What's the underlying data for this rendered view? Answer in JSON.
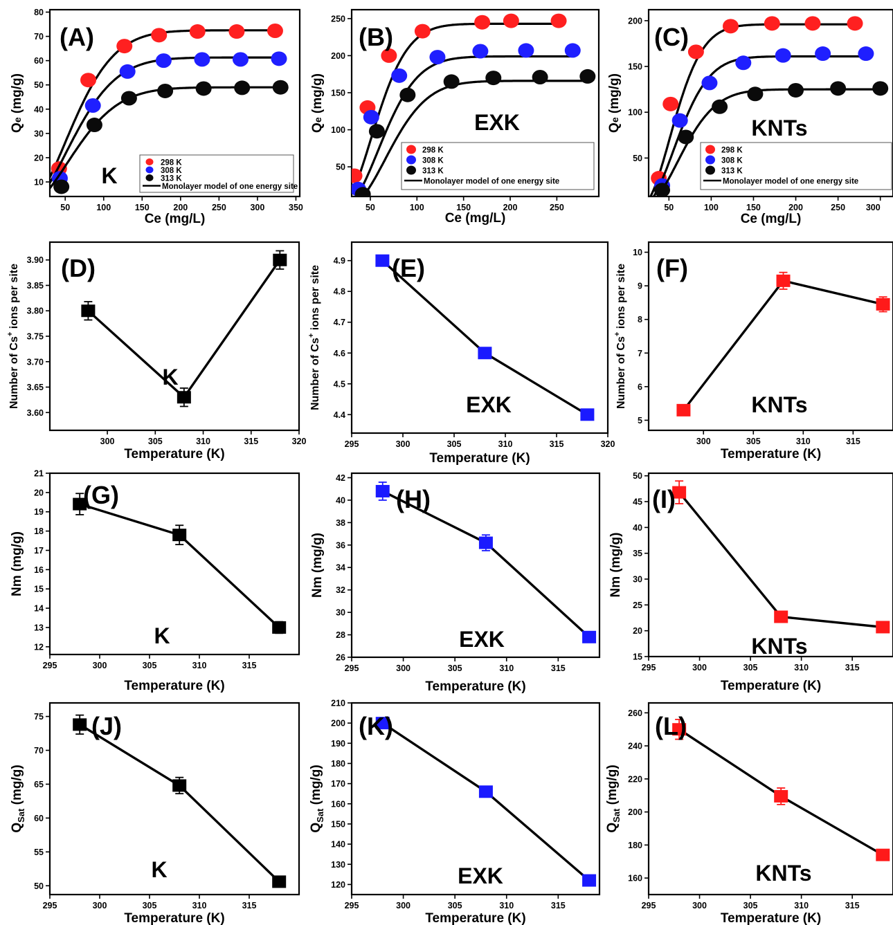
{
  "colors": {
    "298 K": "#ff2020",
    "308 K": "#1f1fff",
    "313 K": "#0a0a0a",
    "K": "#000000",
    "EXK": "#1a1aff",
    "KNTs": "#ff1a1a"
  },
  "chart_data": [
    {
      "id": "A",
      "type": "scatter",
      "panel_label": "(A)",
      "sample_label": "K",
      "xlabel": "Ce (mg/L)",
      "ylabel": "Qe (mg/g)",
      "xlim": [
        30,
        355
      ],
      "ylim": [
        4,
        81
      ],
      "xticks": [
        50,
        100,
        150,
        200,
        250,
        300,
        350
      ],
      "yticks": [
        10,
        20,
        30,
        40,
        50,
        60,
        70,
        80
      ],
      "legend": {
        "position": "bottom-right",
        "entries": [
          "298 K",
          "308 K",
          "313 K",
          "Monolayer  model of one energy site"
        ]
      },
      "series": [
        {
          "name": "298 K",
          "color_key": "298 K",
          "x": [
            42,
            80,
            127,
            172,
            222,
            273,
            323
          ],
          "y": [
            15.5,
            52,
            66,
            70.5,
            72,
            72,
            72.3
          ],
          "fit": [
            0,
            72.5,
            78
          ]
        },
        {
          "name": "308 K",
          "color_key": "308 K",
          "x": [
            43,
            86,
            131,
            178,
            228,
            278,
            328
          ],
          "y": [
            11.5,
            41.5,
            55.5,
            60,
            60.5,
            60.5,
            60.8
          ],
          "fit": [
            0,
            61.3,
            80
          ]
        },
        {
          "name": "313 K",
          "color_key": "313 K",
          "x": [
            45,
            88,
            133,
            180,
            230,
            280,
            330
          ],
          "y": [
            8,
            33.5,
            44.5,
            47.5,
            48.5,
            48.8,
            49
          ],
          "fit": [
            0,
            49,
            82
          ]
        }
      ]
    },
    {
      "id": "B",
      "type": "scatter",
      "panel_label": "(B)",
      "sample_label": "EXK",
      "xlabel": "Ce (mg/L)",
      "ylabel": "Qe (mg/g)",
      "xlim": [
        30,
        295
      ],
      "ylim": [
        10,
        262
      ],
      "xticks": [
        50,
        100,
        150,
        200,
        250
      ],
      "yticks": [
        50,
        100,
        150,
        200,
        250
      ],
      "legend": {
        "position": "bottom-right",
        "entries": [
          "298 K",
          "308 K",
          "313 K",
          "Monolayer model of one energy site"
        ]
      },
      "series": [
        {
          "name": "298 K",
          "color_key": "298 K",
          "x": [
            33,
            47,
            70,
            106,
            170,
            201,
            252
          ],
          "y": [
            38,
            130,
            200,
            233,
            245,
            247,
            247
          ],
          "fit": [
            20,
            243,
            48
          ]
        },
        {
          "name": "308 K",
          "color_key": "308 K",
          "x": [
            37,
            51,
            81,
            122,
            168,
            217,
            267
          ],
          "y": [
            20,
            117,
            173,
            198,
            206,
            207,
            207
          ],
          "fit": [
            25,
            199,
            52
          ]
        },
        {
          "name": "313 K",
          "color_key": "313 K",
          "x": [
            42,
            57,
            90,
            137,
            182,
            232,
            283
          ],
          "y": [
            13,
            98,
            147,
            165,
            170,
            171,
            172
          ],
          "fit": [
            30,
            166,
            56
          ]
        }
      ]
    },
    {
      "id": "C",
      "type": "scatter",
      "panel_label": "(C)",
      "sample_label": "KNTs",
      "xlabel": "Ce (mg/L)",
      "ylabel": "Qe (mg/g)",
      "xlim": [
        26,
        315
      ],
      "ylim": [
        8,
        212
      ],
      "xticks": [
        50,
        100,
        150,
        200,
        250,
        300
      ],
      "yticks": [
        50,
        100,
        150,
        200
      ],
      "legend": {
        "position": "bottom-right",
        "entries": [
          "298 K",
          "308 K",
          "313 K",
          "Monolayer model of one energy site"
        ]
      },
      "series": [
        {
          "name": "298 K",
          "color_key": "298 K",
          "x": [
            38,
            52,
            82,
            123,
            172,
            220,
            270
          ],
          "y": [
            28,
            109,
            166,
            194,
            197,
            197,
            197
          ],
          "fit": [
            20,
            196,
            48
          ]
        },
        {
          "name": "308 K",
          "color_key": "308 K",
          "x": [
            42,
            63,
            98,
            138,
            185,
            232,
            283
          ],
          "y": [
            20,
            91,
            132,
            154,
            162,
            164,
            164
          ],
          "fit": [
            22,
            161,
            52
          ]
        },
        {
          "name": "313 K",
          "color_key": "313 K",
          "x": [
            42,
            70,
            110,
            152,
            200,
            250,
            300
          ],
          "y": [
            15,
            73,
            106,
            120,
            124,
            126,
            126
          ],
          "fit": [
            24,
            125,
            56
          ]
        }
      ]
    },
    {
      "id": "D",
      "type": "line",
      "panel_label": "(D)",
      "sample_label": "K",
      "xlabel": "Temperature (K)",
      "ylabel": "Number of Cs+ ions per site",
      "xlim": [
        294,
        320
      ],
      "ylim": [
        3.565,
        3.935
      ],
      "xticks": [
        300,
        305,
        310,
        315,
        320
      ],
      "yticks": [
        3.6,
        3.65,
        3.7,
        3.75,
        3.8,
        3.85,
        3.9
      ],
      "series": [
        {
          "name": "",
          "color_key": "K",
          "x": [
            298,
            308,
            318
          ],
          "y": [
            3.8,
            3.63,
            3.9
          ],
          "err": [
            0.018,
            0.018,
            0.018
          ]
        }
      ]
    },
    {
      "id": "E",
      "type": "line",
      "panel_label": "(E)",
      "sample_label": "EXK",
      "xlabel": "Temperature (K)",
      "ylabel": "Number of Cs+ ions per site",
      "xlim": [
        295,
        320
      ],
      "ylim": [
        4.34,
        4.96
      ],
      "xticks": [
        295,
        300,
        305,
        310,
        315,
        320
      ],
      "yticks": [
        4.4,
        4.5,
        4.6,
        4.7,
        4.8,
        4.9
      ],
      "series": [
        {
          "name": "",
          "color_key": "EXK",
          "x": [
            298,
            308,
            318
          ],
          "y": [
            4.9,
            4.6,
            4.4
          ],
          "err": [
            0.015,
            0.015,
            0.015
          ]
        }
      ]
    },
    {
      "id": "F",
      "type": "line",
      "panel_label": "(F)",
      "sample_label": "KNTs",
      "xlabel": "Temperature (K)",
      "ylabel": "Number of Cs+ ions per site",
      "xlim": [
        294.5,
        319
      ],
      "ylim": [
        4.7,
        10.3
      ],
      "xticks": [
        300,
        305,
        310,
        315
      ],
      "yticks": [
        5,
        6,
        7,
        8,
        9,
        10
      ],
      "series": [
        {
          "name": "",
          "color_key": "KNTs",
          "x": [
            298,
            308,
            318
          ],
          "y": [
            5.3,
            9.15,
            8.45
          ],
          "err": [
            0.1,
            0.25,
            0.22
          ]
        }
      ]
    },
    {
      "id": "G",
      "type": "line",
      "panel_label": "(G)",
      "sample_label": "K",
      "xlabel": "Temperature (K)",
      "ylabel": "Nm (mg/g)",
      "xlim": [
        295,
        320
      ],
      "ylim": [
        11.6,
        21
      ],
      "xticks": [
        295,
        300,
        305,
        310,
        315
      ],
      "yticks": [
        12,
        13,
        14,
        15,
        16,
        17,
        18,
        19,
        20,
        21
      ],
      "series": [
        {
          "name": "",
          "color_key": "K",
          "x": [
            298,
            308,
            318
          ],
          "y": [
            19.4,
            17.8,
            13.0
          ],
          "err": [
            0.55,
            0.5,
            0.3
          ]
        }
      ]
    },
    {
      "id": "H",
      "type": "line",
      "panel_label": "(H)",
      "sample_label": "EXK",
      "xlabel": "Temperature (K)",
      "ylabel": "Nm (mg/g)",
      "xlim": [
        295,
        319
      ],
      "ylim": [
        26,
        42.4
      ],
      "xticks": [
        295,
        300,
        305,
        310,
        315
      ],
      "yticks": [
        26,
        28,
        30,
        32,
        34,
        36,
        38,
        40,
        42
      ],
      "series": [
        {
          "name": "",
          "color_key": "EXK",
          "x": [
            298,
            308,
            318
          ],
          "y": [
            40.8,
            36.2,
            27.8
          ],
          "err": [
            0.8,
            0.7,
            0.25
          ]
        }
      ]
    },
    {
      "id": "I",
      "type": "line",
      "panel_label": "(I)",
      "sample_label": "KNTs",
      "xlabel": "Temperature (K)",
      "ylabel": "Nm (mg/g)",
      "xlim": [
        295,
        319
      ],
      "ylim": [
        15,
        50.5
      ],
      "xticks": [
        295,
        300,
        305,
        310,
        315
      ],
      "yticks": [
        15,
        20,
        25,
        30,
        35,
        40,
        45,
        50
      ],
      "series": [
        {
          "name": "",
          "color_key": "KNTs",
          "x": [
            298,
            308,
            318
          ],
          "y": [
            46.8,
            22.7,
            20.7
          ],
          "err": [
            2.2,
            0.5,
            0.5
          ]
        }
      ]
    },
    {
      "id": "J",
      "type": "line",
      "panel_label": "(J)",
      "sample_label": "K",
      "xlabel": "Temperature (K)",
      "ylabel": "QSat (mg/g)",
      "xlim": [
        295,
        320
      ],
      "ylim": [
        48.7,
        77
      ],
      "xticks": [
        295,
        300,
        305,
        310,
        315
      ],
      "yticks": [
        50,
        55,
        60,
        65,
        70,
        75
      ],
      "series": [
        {
          "name": "",
          "color_key": "K",
          "x": [
            298,
            308,
            318
          ],
          "y": [
            73.8,
            64.8,
            50.6
          ],
          "err": [
            1.4,
            1.2,
            0.4
          ]
        }
      ]
    },
    {
      "id": "K",
      "type": "line",
      "panel_label": "(K)",
      "sample_label": "EXK",
      "xlabel": "Temperature (K)",
      "ylabel": "QSat (mg/g)",
      "xlim": [
        295,
        319
      ],
      "ylim": [
        115,
        210
      ],
      "xticks": [
        295,
        300,
        305,
        310,
        315
      ],
      "yticks": [
        120,
        130,
        140,
        150,
        160,
        170,
        180,
        190,
        200,
        210
      ],
      "series": [
        {
          "name": "",
          "color_key": "EXK",
          "x": [
            298,
            308,
            318
          ],
          "y": [
            200,
            166,
            122
          ],
          "err": [
            1.5,
            1.5,
            1.0
          ]
        }
      ]
    },
    {
      "id": "L",
      "type": "line",
      "panel_label": "(L)",
      "sample_label": "KNTs",
      "xlabel": "Temperature (K)",
      "ylabel": "QSat (mg/g)",
      "xlim": [
        295,
        319
      ],
      "ylim": [
        150,
        266
      ],
      "xticks": [
        295,
        300,
        305,
        310,
        315
      ],
      "yticks": [
        160,
        180,
        200,
        220,
        240,
        260
      ],
      "series": [
        {
          "name": "",
          "color_key": "KNTs",
          "x": [
            298,
            308,
            318
          ],
          "y": [
            250,
            209.5,
            174
          ],
          "err": [
            6,
            5,
            2
          ]
        }
      ]
    }
  ]
}
